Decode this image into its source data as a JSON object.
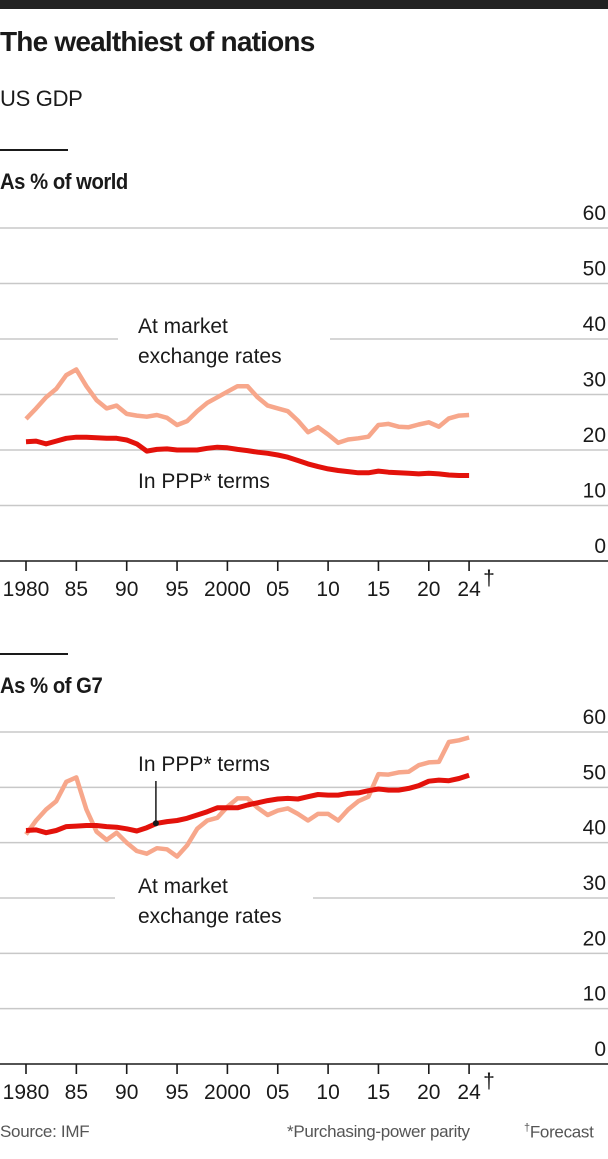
{
  "header": {
    "title": "The wealthiest of nations",
    "subtitle": "US GDP"
  },
  "colors": {
    "market": "#f7a78b",
    "ppp": "#e3120b",
    "grid": "#c8c8c8",
    "axis": "#1a1a1a"
  },
  "chart_data": [
    {
      "type": "line",
      "title": "As % of world",
      "xlabel": "",
      "ylabel": "",
      "ylim": [
        0,
        60
      ],
      "yticks": [
        0,
        10,
        20,
        30,
        40,
        50,
        60
      ],
      "xlim": [
        1980,
        2024
      ],
      "xticks": [
        1980,
        1985,
        1990,
        1995,
        2000,
        2005,
        2010,
        2015,
        2020,
        2024
      ],
      "xtick_labels": [
        "1980",
        "85",
        "90",
        "95",
        "2000",
        "05",
        "10",
        "15",
        "20",
        "24"
      ],
      "xtick_marks": {
        "2024": "†"
      },
      "grid": true,
      "annotations": [
        {
          "series": "market",
          "lines": [
            "At market",
            "exchange rates"
          ]
        },
        {
          "series": "ppp",
          "lines": [
            "In PPP* terms"
          ]
        }
      ],
      "x": [
        1980,
        1981,
        1982,
        1983,
        1984,
        1985,
        1986,
        1987,
        1988,
        1989,
        1990,
        1991,
        1992,
        1993,
        1994,
        1995,
        1996,
        1997,
        1998,
        1999,
        2000,
        2001,
        2002,
        2003,
        2004,
        2005,
        2006,
        2007,
        2008,
        2009,
        2010,
        2011,
        2012,
        2013,
        2014,
        2015,
        2016,
        2017,
        2018,
        2019,
        2020,
        2021,
        2022,
        2023,
        2024
      ],
      "series": [
        {
          "name": "At market exchange rates",
          "key": "market",
          "values": [
            25.6,
            27.5,
            29.5,
            31,
            33.5,
            34.5,
            31.5,
            29,
            27.5,
            28,
            26.5,
            26.2,
            26,
            26.3,
            25.8,
            24.5,
            25.2,
            27,
            28.5,
            29.5,
            30.5,
            31.5,
            31.5,
            29.5,
            28,
            27.5,
            27,
            25.3,
            23.2,
            24.1,
            22.8,
            21.3,
            21.9,
            22.1,
            22.4,
            24.5,
            24.7,
            24.2,
            24.1,
            24.6,
            25,
            24.2,
            25.7,
            26.2,
            26.3
          ]
        },
        {
          "name": "In PPP* terms",
          "key": "ppp",
          "values": [
            21.5,
            21.6,
            21.1,
            21.6,
            22.1,
            22.3,
            22.3,
            22.2,
            22.1,
            22.1,
            21.8,
            21.1,
            19.8,
            20.1,
            20.2,
            20,
            20,
            20,
            20.3,
            20.5,
            20.4,
            20.1,
            19.9,
            19.6,
            19.4,
            19.1,
            18.7,
            18.1,
            17.5,
            17,
            16.6,
            16.3,
            16.1,
            15.9,
            15.9,
            16.2,
            16,
            15.9,
            15.8,
            15.7,
            15.8,
            15.7,
            15.5,
            15.4,
            15.4
          ]
        }
      ]
    },
    {
      "type": "line",
      "title": "As % of G7",
      "xlabel": "",
      "ylabel": "",
      "ylim": [
        0,
        60
      ],
      "yticks": [
        0,
        10,
        20,
        30,
        40,
        50,
        60
      ],
      "xlim": [
        1980,
        2024
      ],
      "xticks": [
        1980,
        1985,
        1990,
        1995,
        2000,
        2005,
        2010,
        2015,
        2020,
        2024
      ],
      "xtick_labels": [
        "1980",
        "85",
        "90",
        "95",
        "2000",
        "05",
        "10",
        "15",
        "20",
        "24"
      ],
      "xtick_marks": {
        "2024": "†"
      },
      "grid": true,
      "annotations": [
        {
          "series": "ppp",
          "lines": [
            "In PPP* terms"
          ],
          "leader_year": 1993
        },
        {
          "series": "market",
          "lines": [
            "At market",
            "exchange rates"
          ]
        }
      ],
      "x": [
        1980,
        1981,
        1982,
        1983,
        1984,
        1985,
        1986,
        1987,
        1988,
        1989,
        1990,
        1991,
        1992,
        1993,
        1994,
        1995,
        1996,
        1997,
        1998,
        1999,
        2000,
        2001,
        2002,
        2003,
        2004,
        2005,
        2006,
        2007,
        2008,
        2009,
        2010,
        2011,
        2012,
        2013,
        2014,
        2015,
        2016,
        2017,
        2018,
        2019,
        2020,
        2021,
        2022,
        2023,
        2024
      ],
      "series": [
        {
          "name": "At market exchange rates",
          "key": "market",
          "values": [
            41.5,
            44,
            46,
            47.5,
            51,
            51.8,
            46,
            42,
            40.5,
            41.8,
            40,
            38.5,
            38,
            39,
            38.8,
            37.5,
            39.5,
            42.5,
            44,
            44.5,
            46.5,
            48,
            48,
            46.3,
            45,
            45.8,
            46.2,
            45.2,
            44,
            45.2,
            45.2,
            44,
            46,
            47.5,
            48.3,
            52.4,
            52.3,
            52.7,
            52.8,
            54,
            54.5,
            54.6,
            58.2,
            58.5,
            59
          ]
        },
        {
          "name": "In PPP* terms",
          "key": "ppp",
          "values": [
            42.2,
            42.3,
            41.8,
            42.2,
            42.9,
            43,
            43.1,
            43.1,
            42.9,
            42.8,
            42.5,
            42.1,
            42.7,
            43.5,
            43.8,
            44,
            44.4,
            45,
            45.6,
            46.3,
            46.3,
            46.3,
            46.8,
            47.2,
            47.6,
            47.9,
            48,
            47.9,
            48.3,
            48.7,
            48.6,
            48.6,
            48.9,
            49,
            49.4,
            49.7,
            49.5,
            49.5,
            49.8,
            50.3,
            51.1,
            51.3,
            51.2,
            51.6,
            52.2
          ]
        }
      ]
    }
  ],
  "footer": {
    "source": "Source: IMF",
    "note_ppp": "*Purchasing-power parity",
    "note_forecast_mark": "†",
    "note_forecast": "Forecast"
  }
}
